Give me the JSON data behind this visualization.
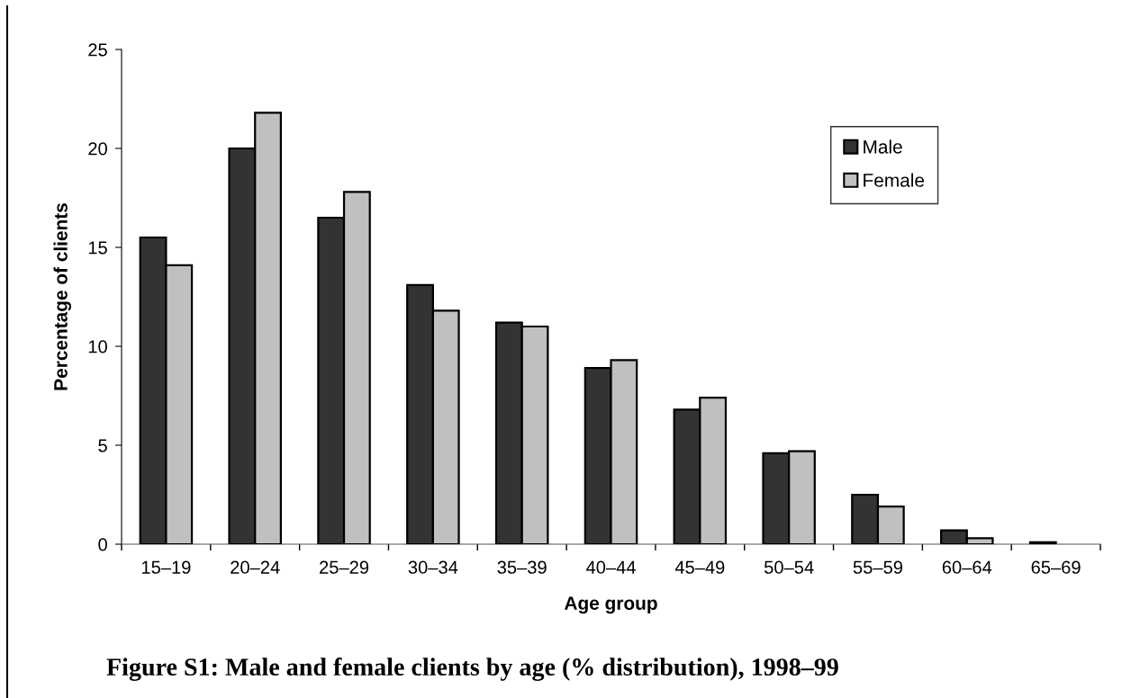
{
  "chart_data": {
    "type": "bar",
    "xlabel": "Age group",
    "ylabel": "Percentage of clients",
    "annotations": [
      "Figure S1: Male and female clients by age (% distribution), 1998–99"
    ],
    "categories": [
      "15–19",
      "20–24",
      "25–29",
      "30–34",
      "35–39",
      "40–44",
      "45–49",
      "50–54",
      "55–59",
      "60–64",
      "65–69"
    ],
    "series": [
      {
        "name": "Male",
        "color": "#333333",
        "values": [
          15.5,
          20.0,
          16.5,
          13.1,
          11.2,
          8.9,
          6.8,
          4.6,
          2.5,
          0.7,
          0.1
        ]
      },
      {
        "name": "Female",
        "color": "#c0c0c0",
        "values": [
          14.1,
          21.8,
          17.8,
          11.8,
          11.0,
          9.3,
          7.4,
          4.7,
          1.9,
          0.3,
          null
        ]
      }
    ],
    "ylim": [
      0,
      25
    ],
    "yticks": [
      0,
      5,
      10,
      15,
      20,
      25
    ],
    "grid": false,
    "legend": "top right"
  }
}
